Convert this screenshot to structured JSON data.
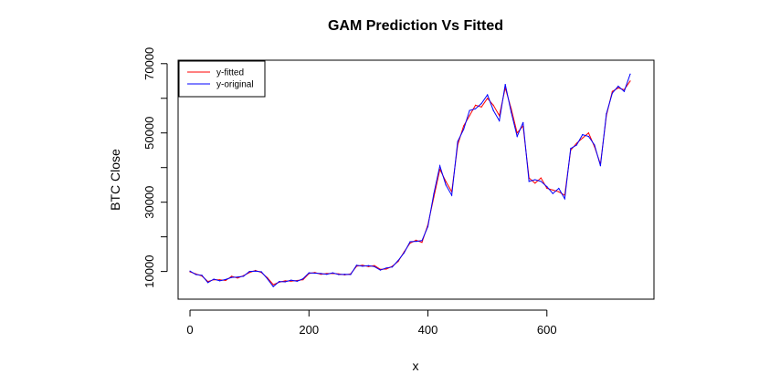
{
  "chart_data": {
    "type": "line",
    "title": "GAM Prediction Vs Fitted",
    "xlabel": "x",
    "ylabel": "BTC Close",
    "xlim": [
      -20,
      780
    ],
    "ylim": [
      2000,
      71000
    ],
    "x_ticks": [
      0,
      200,
      400,
      600
    ],
    "y_ticks": [
      10000,
      20000,
      30000,
      40000,
      50000,
      60000,
      70000
    ],
    "y_tick_labels": [
      "10000",
      "",
      "30000",
      "",
      "50000",
      "",
      "70000"
    ],
    "grid": false,
    "legend_position": "top-left",
    "series": [
      {
        "name": "y-fitted",
        "color": "#ff0000",
        "x": [
          0,
          10,
          20,
          30,
          40,
          50,
          60,
          70,
          80,
          90,
          100,
          110,
          120,
          130,
          140,
          150,
          160,
          170,
          180,
          190,
          200,
          210,
          220,
          230,
          240,
          250,
          260,
          270,
          280,
          290,
          300,
          310,
          320,
          330,
          340,
          350,
          360,
          370,
          380,
          390,
          400,
          410,
          420,
          430,
          440,
          450,
          460,
          470,
          480,
          490,
          500,
          510,
          520,
          530,
          540,
          550,
          560,
          570,
          580,
          590,
          600,
          610,
          620,
          630,
          640,
          650,
          660,
          670,
          680,
          690,
          700,
          710,
          720,
          730,
          740
        ],
        "values": [
          9900,
          9300,
          8700,
          7100,
          7600,
          7600,
          7400,
          8600,
          8100,
          8800,
          9700,
          10300,
          9700,
          8200,
          6200,
          6900,
          7300,
          7200,
          7400,
          7600,
          9400,
          9700,
          9200,
          9400,
          9400,
          9300,
          9000,
          9300,
          11500,
          11800,
          11400,
          11700,
          10600,
          10700,
          11500,
          12900,
          15700,
          18200,
          19000,
          18400,
          23500,
          31500,
          39500,
          36000,
          33000,
          46500,
          52000,
          55000,
          58000,
          57500,
          60000,
          58000,
          55000,
          63000,
          57000,
          50000,
          52000,
          37000,
          35500,
          37000,
          34000,
          33500,
          33000,
          32000,
          45000,
          47000,
          48500,
          50000,
          46000,
          41000,
          55000,
          62000,
          63000,
          62500,
          65000
        ]
      },
      {
        "name": "y-original",
        "color": "#0000ff",
        "x": [
          0,
          10,
          20,
          30,
          40,
          50,
          60,
          70,
          80,
          90,
          100,
          110,
          120,
          130,
          140,
          150,
          160,
          170,
          180,
          190,
          200,
          210,
          220,
          230,
          240,
          250,
          260,
          270,
          280,
          290,
          300,
          310,
          320,
          330,
          340,
          350,
          360,
          370,
          380,
          390,
          400,
          410,
          420,
          430,
          440,
          450,
          460,
          470,
          480,
          490,
          500,
          510,
          520,
          530,
          540,
          550,
          560,
          570,
          580,
          590,
          600,
          610,
          620,
          630,
          640,
          650,
          660,
          670,
          680,
          690,
          700,
          710,
          720,
          730,
          740
        ],
        "values": [
          10100,
          9100,
          8900,
          6800,
          7800,
          7300,
          7700,
          8300,
          8400,
          8600,
          10000,
          10100,
          9900,
          7900,
          5600,
          7100,
          7000,
          7500,
          7200,
          7900,
          9600,
          9500,
          9400,
          9200,
          9600,
          9100,
          9200,
          9100,
          11800,
          11500,
          11700,
          11400,
          10400,
          11000,
          11300,
          13200,
          15400,
          18600,
          18700,
          18900,
          23000,
          32500,
          40500,
          35000,
          32000,
          47500,
          51000,
          56500,
          57000,
          58500,
          61000,
          56500,
          53500,
          64000,
          56000,
          49000,
          53000,
          36000,
          36500,
          36000,
          34500,
          32500,
          34000,
          31000,
          45500,
          46500,
          49500,
          49000,
          46500,
          40500,
          55500,
          61500,
          63500,
          62000,
          67000
        ]
      }
    ]
  }
}
